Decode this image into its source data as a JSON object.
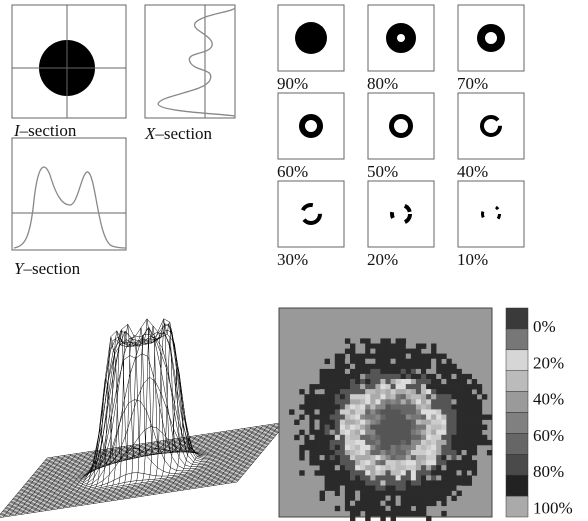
{
  "sections": {
    "i": {
      "var": "I",
      "suffix": "–section"
    },
    "x": {
      "var": "X",
      "suffix": "–section"
    },
    "y": {
      "var": "Y",
      "suffix": "–section"
    }
  },
  "thresholds": [
    "90%",
    "80%",
    "70%",
    "60%",
    "50%",
    "40%",
    "30%",
    "20%",
    "10%"
  ],
  "colorbar": [
    "0%",
    "20%",
    "40%",
    "60%",
    "80%",
    "100%"
  ]
}
